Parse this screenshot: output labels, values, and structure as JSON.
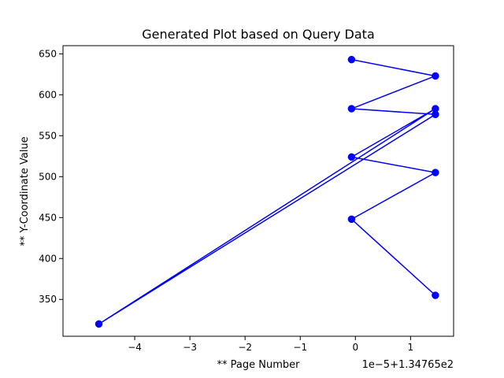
{
  "chart_data": {
    "type": "line",
    "title": "Generated Plot based on Query Data",
    "xlabel": "** Page Number",
    "ylabel": "** Y-Coordinate Value",
    "x_offset_label": "1e−5+1.34765e2",
    "x_scale": 1e-05,
    "x_offset": 134.765,
    "xlim": [
      -5.3,
      1.78
    ],
    "ylim": [
      305,
      660
    ],
    "x_ticks": [
      -4,
      -3,
      -2,
      -1,
      0,
      1
    ],
    "x_tick_labels": [
      "−4",
      "−3",
      "−2",
      "−1",
      "0",
      "1"
    ],
    "y_ticks": [
      350,
      400,
      450,
      500,
      550,
      600,
      650
    ],
    "y_tick_labels": [
      "350",
      "400",
      "450",
      "500",
      "550",
      "600",
      "650"
    ],
    "grid": false,
    "series": [
      {
        "color": "#0000ff",
        "marker": "circle",
        "x": [
          -0.07,
          1.45,
          -0.07,
          1.45,
          -4.65,
          1.45,
          -0.07,
          1.45,
          -0.07,
          1.45
        ],
        "y": [
          643,
          623,
          583,
          576,
          320,
          583,
          524,
          505,
          448,
          355
        ]
      }
    ]
  }
}
